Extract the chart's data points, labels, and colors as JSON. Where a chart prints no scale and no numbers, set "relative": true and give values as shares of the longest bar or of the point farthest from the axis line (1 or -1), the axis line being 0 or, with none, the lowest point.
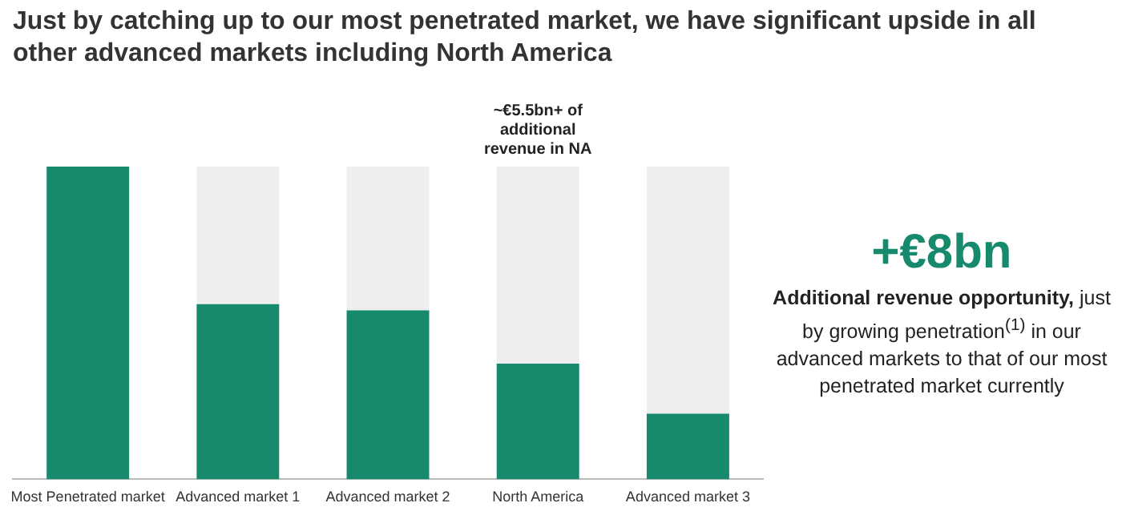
{
  "chart_data": {
    "type": "bar",
    "title": "Just by catching up to our most penetrated market, we have significant upside in all other advanced markets including North America",
    "categories": [
      "Most Penetrated market",
      "Advanced market 1",
      "Advanced market 2",
      "North America",
      "Advanced market 3"
    ],
    "stacked": true,
    "relative": true,
    "grid": false,
    "legend": false,
    "series": [
      {
        "color": "#178a6e",
        "values": [
          1,
          0.56,
          0.54,
          0.37,
          0.21
        ]
      },
      {
        "color": "#eeeeee",
        "values": [
          0,
          0.44,
          0.46,
          0.63,
          0.79
        ]
      }
    ],
    "annotations": [
      {
        "text": "~€5.5bn+ of additional revenue in NA",
        "x": "North America",
        "y": 1
      },
      "+€8bn",
      "Additional revenue opportunity,",
      "just by growing penetration$^{(1)}$ in our advanced markets to that of our most penetrated market currently"
    ]
  }
}
